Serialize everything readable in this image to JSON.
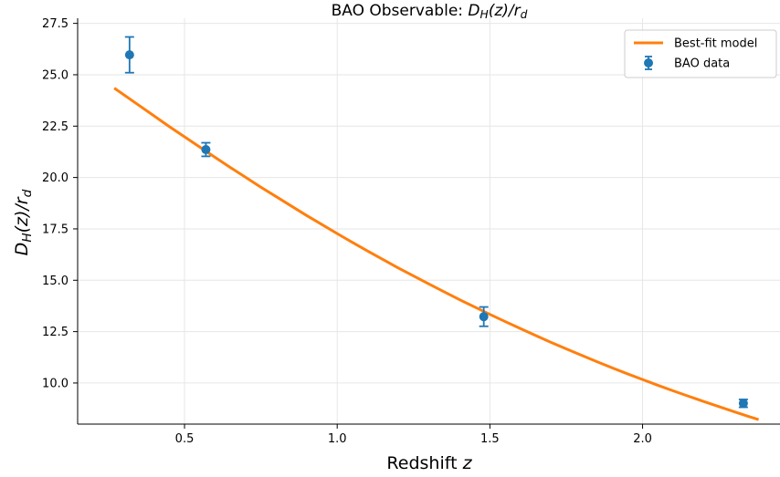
{
  "chart_data": {
    "type": "scatter",
    "title_prefix": "BAO Observable: ",
    "title_math": "D_H(z)/r_d",
    "xlabel_prefix": "Redshift ",
    "xlabel_math": "z",
    "ylabel_math": "D_H(z)/r_d",
    "xlim": [
      0.15,
      2.45
    ],
    "ylim": [
      8.0,
      27.75
    ],
    "xticks": [
      0.5,
      1.0,
      1.5,
      2.0
    ],
    "xtick_labels": [
      "0.5",
      "1.0",
      "1.5",
      "2.0"
    ],
    "yticks": [
      10.0,
      12.5,
      15.0,
      17.5,
      20.0,
      22.5,
      25.0,
      27.5
    ],
    "ytick_labels": [
      "10.0",
      "12.5",
      "15.0",
      "17.5",
      "20.0",
      "22.5",
      "25.0",
      "27.5"
    ],
    "grid": true,
    "legend_position": "top-right",
    "series": [
      {
        "name": "Best-fit model",
        "kind": "line",
        "color": "#ff7f0e",
        "x": [
          0.27,
          0.3,
          0.35,
          0.4,
          0.45,
          0.5,
          0.55,
          0.6,
          0.65,
          0.7,
          0.75,
          0.8,
          0.85,
          0.9,
          0.95,
          1.0,
          1.05,
          1.1,
          1.15,
          1.2,
          1.25,
          1.3,
          1.35,
          1.4,
          1.45,
          1.5,
          1.55,
          1.6,
          1.65,
          1.7,
          1.75,
          1.8,
          1.85,
          1.9,
          1.95,
          2.0,
          2.05,
          2.1,
          2.15,
          2.2,
          2.25,
          2.3,
          2.35,
          2.38
        ],
        "y": [
          24.35,
          24.04,
          23.52,
          23.0,
          22.48,
          21.98,
          21.48,
          20.98,
          20.49,
          20.01,
          19.53,
          19.07,
          18.61,
          18.15,
          17.71,
          17.27,
          16.84,
          16.42,
          16.01,
          15.6,
          15.21,
          14.82,
          14.44,
          14.06,
          13.7,
          13.34,
          12.99,
          12.65,
          12.31,
          11.98,
          11.66,
          11.35,
          11.04,
          10.74,
          10.45,
          10.17,
          9.89,
          9.62,
          9.36,
          9.1,
          8.85,
          8.6,
          8.36,
          8.22
        ]
      },
      {
        "name": "BAO data",
        "kind": "errorbar",
        "color": "#1f77b4",
        "x": [
          0.32,
          0.57,
          1.48,
          2.33
        ],
        "y": [
          25.97,
          21.36,
          13.23,
          9.01
        ],
        "yerr": [
          0.87,
          0.33,
          0.47,
          0.19
        ]
      }
    ]
  }
}
